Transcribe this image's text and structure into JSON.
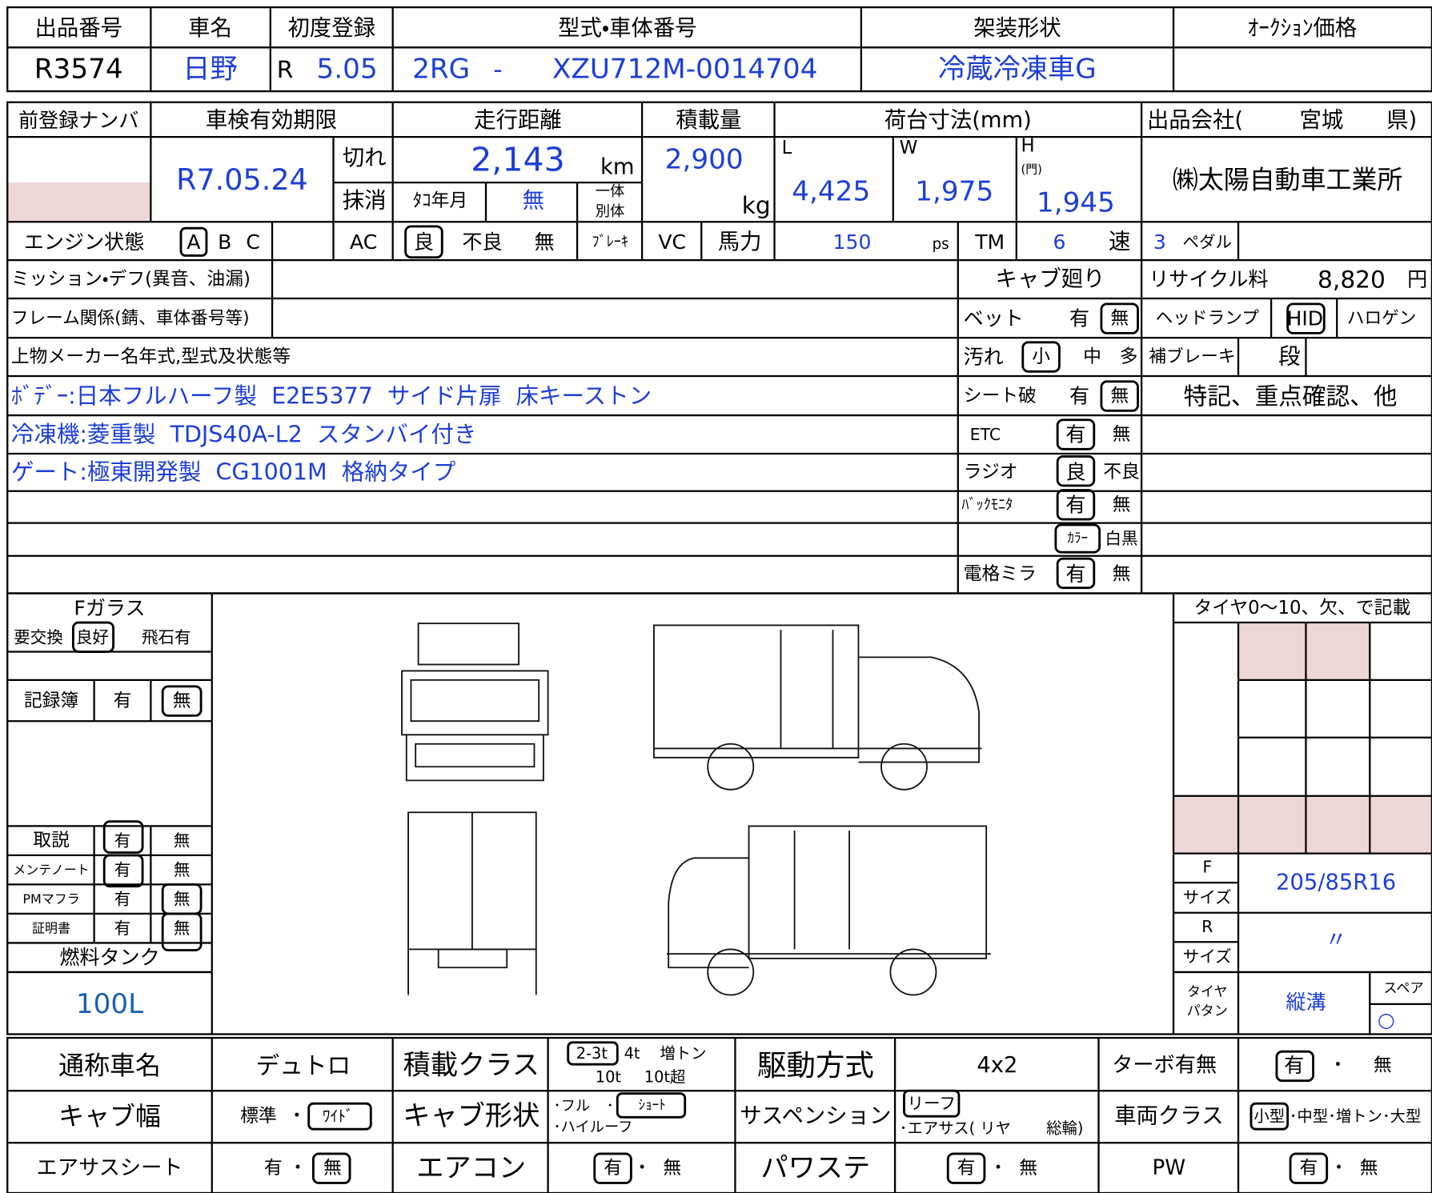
{
  "header": {
    "labels": [
      "出品番号",
      "車名",
      "初度登録",
      "型式・車体番号",
      "架装形状",
      "ｵｰｸｼｮﾝ価格"
    ],
    "lot": "R3574",
    "maker": "日野",
    "first_reg_era": "R",
    "first_reg": "5.05",
    "model": "2RG",
    "separator": "-",
    "chassis": "XZU712M-0014704",
    "body": "冷蔵冷凍車G"
  },
  "registration": {
    "labels": [
      "前登録ナンバ",
      "車検有効期限",
      "走行距離",
      "積載量",
      "荷台寸法(mm)"
    ],
    "seller_labels": [
      "出品会社(",
      "宮城",
      "県)"
    ],
    "inspection_expiry": "R7.05.24",
    "inspection_status": [
      "切れ",
      "抹消"
    ],
    "mileage": "2,143",
    "mileage_unit": "km",
    "tacho_label": "ﾀｺ年月",
    "tacho": "無",
    "meter_type": [
      "一体",
      "別体"
    ],
    "capacity": "2,900",
    "capacity_unit": "kg",
    "dims": [
      {
        "label": "L",
        "value": "4,425"
      },
      {
        "label": "W",
        "value": "1,975"
      },
      {
        "label": "H",
        "note": "(門)",
        "value": "1,945"
      }
    ],
    "company": "㈱太陽自動車工業所"
  },
  "engine_row": [
    "エンジン状態",
    "A",
    "B",
    "C",
    "AC",
    "良",
    "不良",
    "無",
    "ﾌﾞﾚｰｷ",
    "VC",
    "馬力",
    "150",
    "ps",
    "TM",
    "6",
    "速",
    "3",
    "ペダル"
  ],
  "condition": {
    "labels": [
      "ミッション・デフ(異音、油漏)",
      "フレーム関係(錆、車体番号等)",
      "上物メーカー名年式,型式及状態等"
    ],
    "notes": [
      "ﾎﾞﾃﾞｰ:日本フルハーフ製  E2E5377  サイド片扉  床キーストン",
      "冷凍機:菱重製  TDJS40A-L2  スタンバイ付き",
      "ゲート:極東開発製  CG1001M  格納タイプ"
    ]
  },
  "cab": {
    "title": "キャブ廻り",
    "items": [
      {
        "label": "ベット",
        "options": [
          "有",
          "無"
        ]
      },
      {
        "label": "汚れ",
        "options": [
          "小",
          "中",
          "多"
        ]
      },
      {
        "label": "シート破",
        "options": [
          "有",
          "無"
        ]
      },
      {
        "label": "ETC",
        "options": [
          "有",
          "無"
        ]
      },
      {
        "label": "ラジオ",
        "options": [
          "良",
          "不良"
        ]
      },
      {
        "label": "ﾊﾞｯｸﾓﾆﾀ",
        "options": [
          "有",
          "無"
        ]
      },
      {
        "label": "電格ミラ",
        "options": [
          "有",
          "無"
        ]
      }
    ],
    "monitor_color": [
      "ｶﾗｰ",
      "白黒"
    ]
  },
  "extras": {
    "recycle_label": "リサイクル料",
    "recycle": "8,820",
    "recycle_unit": "円",
    "headlamp": [
      "ヘッドランプ",
      "HID",
      "ハロゲン"
    ],
    "aux_brake": [
      "補ブレーキ",
      "段"
    ],
    "notes_title": "特記、重点確認、他"
  },
  "left_panel": {
    "fglass": "Fガラス",
    "fglass_options": [
      "要交換",
      "良好",
      "飛石有"
    ],
    "record": [
      "記録簿",
      "有",
      "無"
    ],
    "docs": [
      [
        "取説",
        "有",
        "無"
      ],
      [
        "メンテノート",
        "有",
        "無"
      ],
      [
        "PMマフラ",
        "有",
        "無"
      ],
      [
        "証明書",
        "有",
        "無"
      ]
    ],
    "fuel_label": "燃料タンク",
    "fuel": "100L"
  },
  "tires": {
    "title": "タイヤ0～10、欠、で記載",
    "front": "F",
    "rear": "R",
    "size_label": "サイズ",
    "front_size": "205/85R16",
    "rear_size": "〃",
    "pattern_label": [
      "タイヤ",
      "パタン"
    ],
    "pattern": "縦溝",
    "spare": "スペア",
    "spare_mark": "○"
  },
  "bottom": [
    [
      "通称車名",
      "デュトロ",
      "積載クラス",
      "2-3t",
      "4t",
      "増トン",
      "10t",
      "10t超",
      "駆動方式",
      "4x2",
      "ターボ有無",
      "有",
      "・",
      "無"
    ],
    [
      "キャブ幅",
      "標準",
      "・",
      "ﾜｲﾄﾞ",
      "キャブ形状",
      "･フル",
      "･",
      "ｼｮｰﾄ",
      "･ハイルーフ",
      "サスペンション",
      "リーフ",
      "･エアサス( リヤ",
      "総輪)",
      "車両クラス",
      "小型",
      "･中型･増トン･大型"
    ],
    [
      "エアサスシート",
      "有",
      "・",
      "無",
      "エアコン",
      "有",
      "・",
      "無",
      "パワステ",
      "有",
      "・",
      "無",
      "PW",
      "有",
      "・",
      "無"
    ]
  ]
}
